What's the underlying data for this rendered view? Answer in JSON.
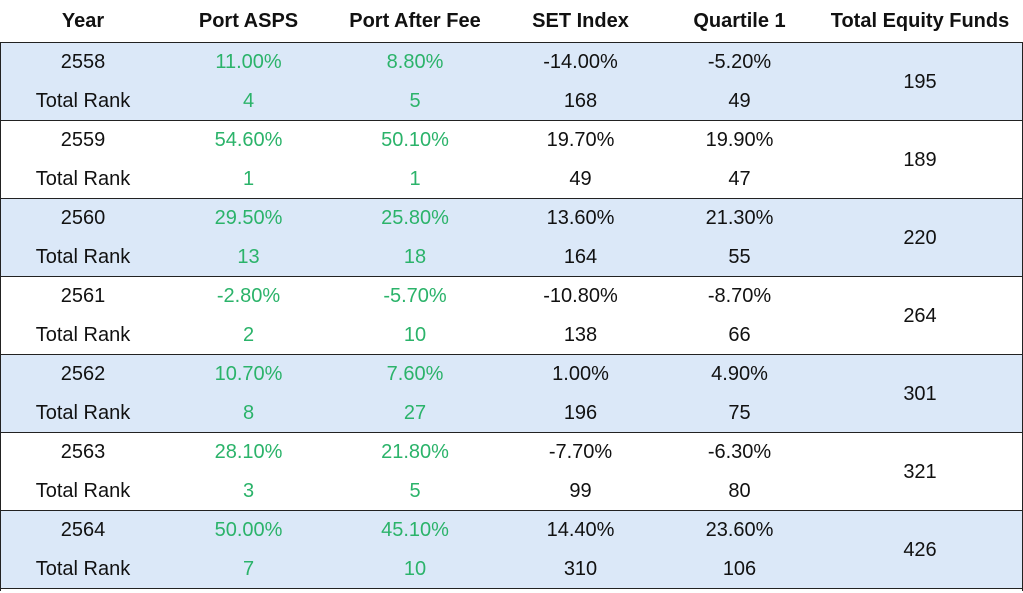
{
  "headers": [
    "Year",
    "Port ASPS",
    "Port After Fee",
    "SET Index",
    "Quartile 1",
    "Total Equity Funds"
  ],
  "rank_label": "Total Rank",
  "colors": {
    "shaded": "#dbe8f8",
    "green": "#2bb36a",
    "text": "#111111"
  },
  "rows": [
    {
      "year": "2558",
      "asps": "11.00%",
      "after_fee": "8.80%",
      "set": "-14.00%",
      "q1": "-5.20%",
      "asps_rank": "4",
      "after_fee_rank": "5",
      "set_rank": "168",
      "q1_rank": "49",
      "total": "195"
    },
    {
      "year": "2559",
      "asps": "54.60%",
      "after_fee": "50.10%",
      "set": "19.70%",
      "q1": "19.90%",
      "asps_rank": "1",
      "after_fee_rank": "1",
      "set_rank": "49",
      "q1_rank": "47",
      "total": "189"
    },
    {
      "year": "2560",
      "asps": "29.50%",
      "after_fee": "25.80%",
      "set": "13.60%",
      "q1": "21.30%",
      "asps_rank": "13",
      "after_fee_rank": "18",
      "set_rank": "164",
      "q1_rank": "55",
      "total": "220"
    },
    {
      "year": "2561",
      "asps": "-2.80%",
      "after_fee": "-5.70%",
      "set": "-10.80%",
      "q1": "-8.70%",
      "asps_rank": "2",
      "after_fee_rank": "10",
      "set_rank": "138",
      "q1_rank": "66",
      "total": "264"
    },
    {
      "year": "2562",
      "asps": "10.70%",
      "after_fee": "7.60%",
      "set": "1.00%",
      "q1": "4.90%",
      "asps_rank": "8",
      "after_fee_rank": "27",
      "set_rank": "196",
      "q1_rank": "75",
      "total": "301"
    },
    {
      "year": "2563",
      "asps": "28.10%",
      "after_fee": "21.80%",
      "set": "-7.70%",
      "q1": "-6.30%",
      "asps_rank": "3",
      "after_fee_rank": "5",
      "set_rank": "99",
      "q1_rank": "80",
      "total": "321"
    },
    {
      "year": "2564",
      "asps": "50.00%",
      "after_fee": "45.10%",
      "set": "14.40%",
      "q1": "23.60%",
      "asps_rank": "7",
      "after_fee_rank": "10",
      "set_rank": "310",
      "q1_rank": "106",
      "total": "426"
    }
  ]
}
